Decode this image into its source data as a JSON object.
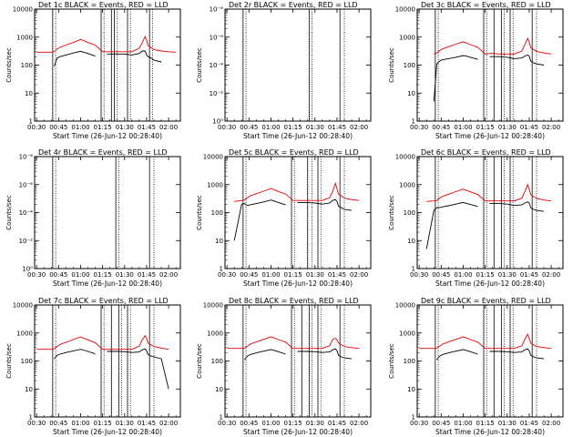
{
  "chart_data": {
    "type": "line",
    "layout": "3x3 grid of panels",
    "xlabel": "Start Time (26-Jun-12 00:28:40)",
    "ylabel": "Counts/sec",
    "x_tick_labels": [
      "00:30",
      "00:45",
      "01:00",
      "01:15",
      "01:30",
      "01:45",
      "02:00"
    ],
    "x_range_minutes": [
      28.67,
      128
    ],
    "log_y_ticks_main": [
      "1",
      "10",
      "100",
      "1000",
      "10000"
    ],
    "log_y_ticks_empty": [
      "10⁰",
      "10⁻²",
      "10⁻⁴",
      "10⁻⁶",
      "10⁻⁸"
    ],
    "series_names": [
      "Events",
      "LLD"
    ],
    "series_colors": {
      "events": "#000000",
      "lld": "#dd0000"
    },
    "x": [
      30,
      35,
      40,
      42,
      44,
      46,
      50,
      55,
      60,
      62,
      65,
      70,
      75,
      78,
      80,
      85,
      90,
      95,
      100,
      102,
      104,
      105,
      106,
      108,
      110,
      115,
      120,
      125
    ],
    "panels": [
      {
        "title": "Det 1c BLACK = Events, RED = LLD",
        "has_data": true,
        "vlines_solid": [
          41,
          74,
          81,
          83,
          92,
          107
        ],
        "vlines_dotted": [
          43,
          76,
          85,
          94,
          109
        ],
        "events": [
          0.0,
          0.0,
          0.0,
          90,
          180,
          200,
          230,
          270,
          310,
          290,
          260,
          210,
          0.0,
          250,
          250,
          250,
          250,
          230,
          260,
          320,
          320,
          230,
          200,
          180,
          150,
          130,
          0.0,
          0.0
        ],
        "lld": [
          290,
          290,
          290,
          300,
          380,
          430,
          520,
          640,
          820,
          760,
          640,
          520,
          300,
          300,
          300,
          300,
          300,
          300,
          400,
          620,
          1050,
          760,
          500,
          420,
          360,
          320,
          300,
          290
        ]
      },
      {
        "title": "Det 2r BLACK = Events, RED = LLD",
        "has_data": false,
        "vlines_solid": [
          41,
          86,
          107
        ],
        "vlines_dotted": [
          43,
          88,
          110
        ]
      },
      {
        "title": "Det 3c BLACK = Events, RED = LLD",
        "has_data": true,
        "vlines_solid": [
          41,
          74,
          81,
          86,
          92,
          107
        ],
        "vlines_dotted": [
          43,
          76,
          88,
          94,
          110
        ],
        "events": [
          0.0,
          0.0,
          5,
          110,
          140,
          155,
          170,
          190,
          220,
          210,
          190,
          160,
          0.0,
          200,
          200,
          200,
          190,
          170,
          180,
          210,
          230,
          210,
          140,
          120,
          110,
          100,
          0.0,
          0.0
        ],
        "lld": [
          0.0,
          0.0,
          250,
          270,
          330,
          380,
          450,
          560,
          680,
          620,
          540,
          430,
          250,
          260,
          260,
          250,
          250,
          250,
          320,
          540,
          900,
          660,
          420,
          360,
          310,
          270,
          250,
          0.0
        ]
      },
      {
        "title": "Det 4r BLACK = Events, RED = LLD",
        "has_data": false,
        "vlines_solid": [
          41,
          84,
          107
        ],
        "vlines_dotted": [
          43,
          86,
          110
        ]
      },
      {
        "title": "Det 5c BLACK = Events, RED = LLD",
        "has_data": true,
        "vlines_solid": [
          41,
          74,
          85,
          92,
          107
        ],
        "vlines_dotted": [
          43,
          76,
          88,
          94,
          110
        ],
        "events": [
          0.0,
          10,
          200,
          210,
          180,
          190,
          210,
          240,
          280,
          260,
          230,
          190,
          0.0,
          230,
          230,
          230,
          220,
          200,
          220,
          270,
          290,
          250,
          170,
          150,
          130,
          120,
          0.0,
          0.0
        ],
        "lld": [
          0.0,
          250,
          270,
          280,
          340,
          400,
          470,
          580,
          720,
          660,
          570,
          460,
          270,
          270,
          270,
          270,
          270,
          270,
          340,
          560,
          1100,
          700,
          460,
          390,
          330,
          290,
          270,
          0.0
        ]
      },
      {
        "title": "Det 6c BLACK = Events, RED = LLD",
        "has_data": true,
        "vlines_solid": [
          41,
          74,
          81,
          86,
          92,
          107
        ],
        "vlines_dotted": [
          43,
          76,
          88,
          94,
          110
        ],
        "events": [
          0.0,
          5,
          120,
          150,
          150,
          160,
          175,
          200,
          230,
          215,
          195,
          165,
          0.0,
          210,
          210,
          210,
          200,
          180,
          190,
          220,
          240,
          220,
          150,
          130,
          120,
          110,
          0.0,
          0.0
        ],
        "lld": [
          0.0,
          250,
          260,
          270,
          330,
          380,
          450,
          560,
          690,
          630,
          550,
          440,
          260,
          260,
          260,
          260,
          260,
          260,
          330,
          550,
          1000,
          680,
          440,
          370,
          320,
          280,
          260,
          0.0
        ]
      },
      {
        "title": "Det 7c BLACK = Events, RED = LLD",
        "has_data": true,
        "vlines_solid": [
          41,
          74,
          81,
          86,
          92,
          107
        ],
        "vlines_dotted": [
          43,
          76,
          88,
          94,
          110
        ],
        "events": [
          0.0,
          0.0,
          0.0,
          120,
          160,
          175,
          200,
          230,
          260,
          245,
          220,
          180,
          0.0,
          220,
          220,
          220,
          215,
          200,
          210,
          250,
          270,
          230,
          170,
          150,
          140,
          120,
          10,
          0.0
        ],
        "lld": [
          260,
          260,
          260,
          270,
          330,
          390,
          460,
          580,
          720,
          660,
          570,
          450,
          260,
          260,
          260,
          260,
          260,
          260,
          340,
          560,
          800,
          640,
          440,
          380,
          330,
          290,
          260,
          0.0
        ]
      },
      {
        "title": "Det 8c BLACK = Events, RED = LLD",
        "has_data": true,
        "vlines_solid": [
          41,
          74,
          81,
          86,
          92,
          107
        ],
        "vlines_dotted": [
          43,
          76,
          88,
          94,
          110
        ],
        "events": [
          0.0,
          0.0,
          0.0,
          110,
          150,
          170,
          195,
          225,
          255,
          240,
          215,
          175,
          0.0,
          220,
          220,
          220,
          215,
          200,
          210,
          250,
          270,
          230,
          160,
          140,
          130,
          120,
          0.0,
          0.0
        ],
        "lld": [
          280,
          280,
          280,
          290,
          340,
          400,
          480,
          590,
          730,
          670,
          580,
          470,
          280,
          280,
          280,
          280,
          280,
          280,
          350,
          580,
          650,
          560,
          440,
          380,
          330,
          300,
          280,
          0.0
        ]
      },
      {
        "title": "Det 9c BLACK = Events, RED = LLD",
        "has_data": true,
        "vlines_solid": [
          41,
          74,
          81,
          86,
          92,
          107
        ],
        "vlines_dotted": [
          43,
          76,
          88,
          94,
          110
        ],
        "events": [
          0.0,
          0.0,
          0.0,
          110,
          150,
          170,
          195,
          225,
          255,
          240,
          215,
          175,
          0.0,
          220,
          220,
          220,
          215,
          200,
          210,
          250,
          270,
          230,
          160,
          140,
          130,
          120,
          0.0,
          0.0
        ],
        "lld": [
          280,
          280,
          280,
          290,
          340,
          400,
          480,
          590,
          730,
          670,
          580,
          470,
          280,
          280,
          280,
          280,
          280,
          280,
          350,
          580,
          900,
          640,
          440,
          380,
          330,
          300,
          280,
          0.0
        ]
      }
    ]
  }
}
